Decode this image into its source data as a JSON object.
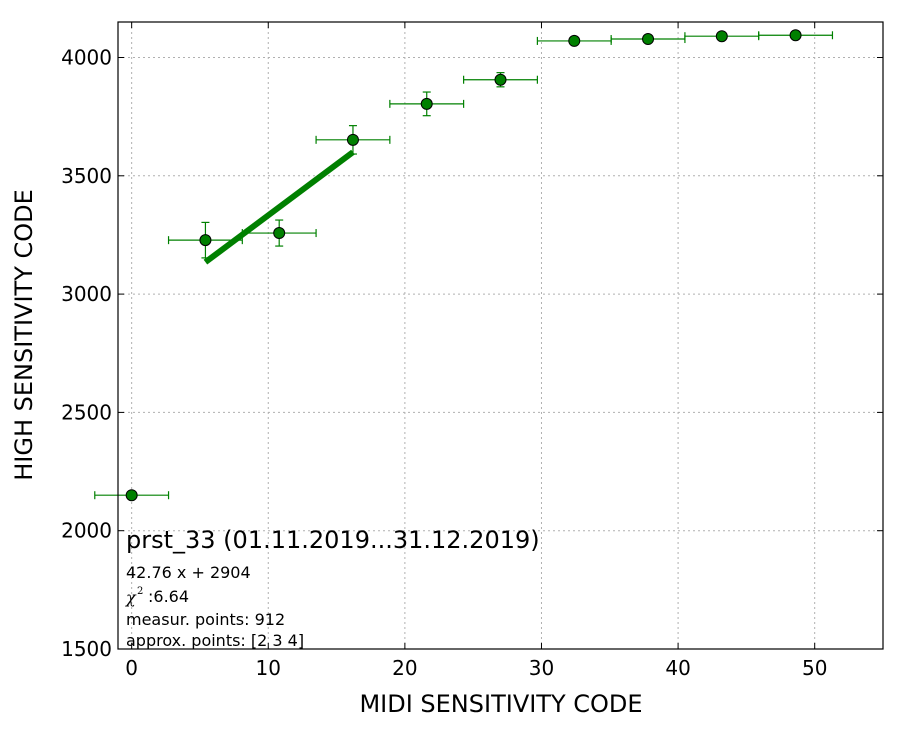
{
  "chart_data": {
    "type": "scatter",
    "title": "prst_33 (01.11.2019...31.12.2019)",
    "xlabel": "MIDI SENSITIVITY CODE",
    "ylabel": "HIGH SENSITIVITY CODE",
    "xlim": [
      -1,
      55
    ],
    "ylim": [
      1500,
      4150
    ],
    "xticks": [
      0,
      10,
      20,
      30,
      40,
      50
    ],
    "yticks": [
      1500,
      2000,
      2500,
      3000,
      3500,
      4000
    ],
    "xtick_labels": [
      "0",
      "10",
      "20",
      "30",
      "40",
      "50"
    ],
    "ytick_labels": [
      "1500",
      "2000",
      "2500",
      "3000",
      "3500",
      "4000"
    ],
    "grid": true,
    "color": "#008000",
    "points": [
      {
        "x": 0,
        "y": 2150,
        "xerr": 2.7,
        "yerr": 0
      },
      {
        "x": 5.4,
        "y": 3228,
        "xerr": 2.7,
        "yerr": 75
      },
      {
        "x": 10.8,
        "y": 3258,
        "xerr": 2.7,
        "yerr": 55
      },
      {
        "x": 16.2,
        "y": 3652,
        "xerr": 2.7,
        "yerr": 60
      },
      {
        "x": 21.6,
        "y": 3804,
        "xerr": 2.7,
        "yerr": 50
      },
      {
        "x": 27.0,
        "y": 3906,
        "xerr": 2.7,
        "yerr": 30
      },
      {
        "x": 32.4,
        "y": 4070,
        "xerr": 2.7,
        "yerr": 10
      },
      {
        "x": 37.8,
        "y": 4078,
        "xerr": 2.7,
        "yerr": 8
      },
      {
        "x": 43.2,
        "y": 4090,
        "xerr": 2.7,
        "yerr": 8
      },
      {
        "x": 48.6,
        "y": 4094,
        "xerr": 2.7,
        "yerr": 8
      }
    ],
    "fit_line": {
      "x": [
        5.4,
        16.2
      ],
      "y": [
        3135,
        3600
      ]
    },
    "annotations": {
      "fit_equation": "42.76 x + 2904",
      "chi2_label": ":6.64",
      "measur_points": "measur. points: 912",
      "approx_points": "approx. points: [2 3 4]"
    }
  }
}
